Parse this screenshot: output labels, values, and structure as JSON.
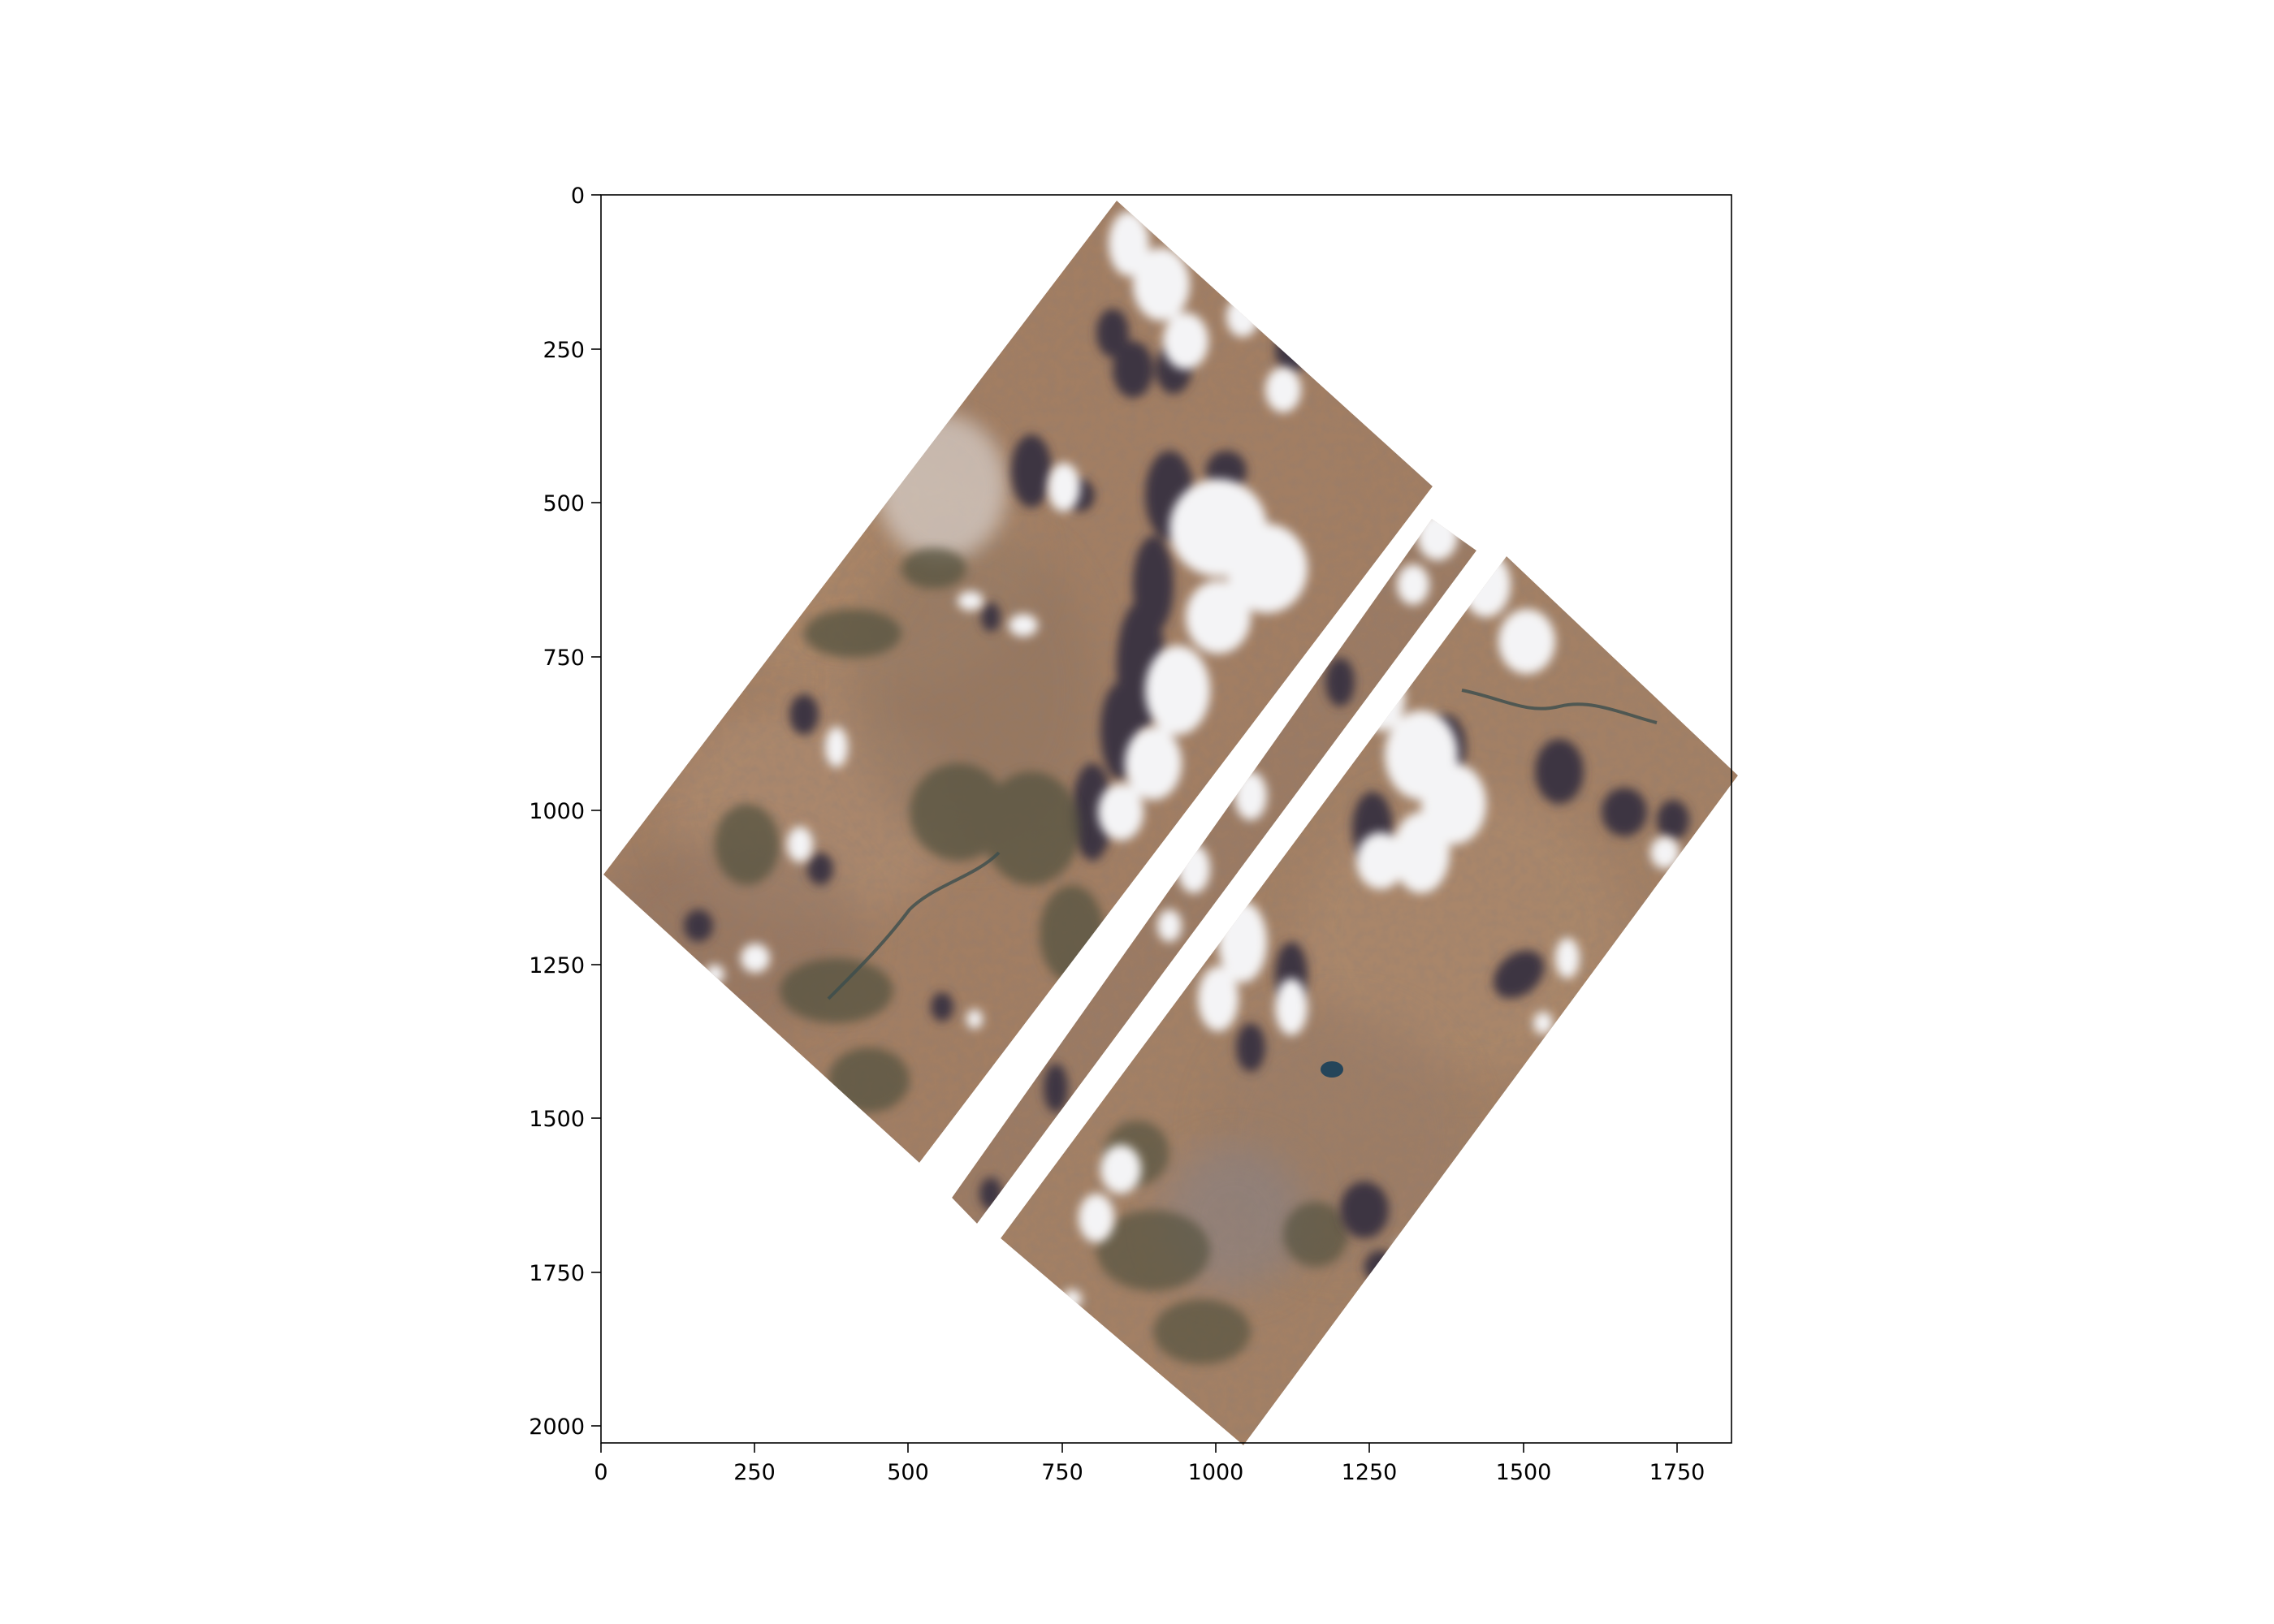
{
  "image": {
    "description_free": true,
    "colors": {
      "terrain": "#a07d62",
      "terrain_light": "#b08c6f",
      "terrain_dark": "#7e6657",
      "shadow": "#3b3541",
      "vegetation": "#5a5a42",
      "cloud": "#f6f6f8",
      "water": "#2a4b57",
      "axis": "#000000"
    }
  },
  "axes": {
    "x_ticks": [
      "0",
      "250",
      "500",
      "750",
      "1000",
      "1250",
      "1500",
      "1750"
    ],
    "y_ticks": [
      "0",
      "250",
      "500",
      "750",
      "1000",
      "1250",
      "1500",
      "1750",
      "2000"
    ],
    "xlim": [
      0,
      1835
    ],
    "ylim": [
      2030,
      0
    ]
  }
}
